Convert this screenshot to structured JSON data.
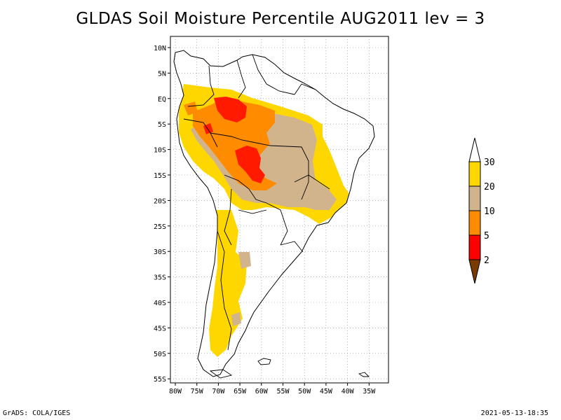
{
  "title": "GLDAS Soil Moisture Percentile AUG2011 lev = 3",
  "footer": {
    "left": "GrADS: COLA/IGES",
    "right": "2021-05-13-18:35"
  },
  "axes": {
    "lat_ticks": [
      "10N",
      "5N",
      "EQ",
      "5S",
      "10S",
      "15S",
      "20S",
      "25S",
      "30S",
      "35S",
      "40S",
      "45S",
      "50S",
      "55S"
    ],
    "lon_ticks": [
      "80W",
      "75W",
      "70W",
      "65W",
      "60W",
      "55W",
      "50W",
      "45W",
      "40W",
      "35W"
    ]
  },
  "legend": {
    "labels": [
      "2",
      "5",
      "10",
      "20",
      "30"
    ],
    "colors": {
      "below_2": "#7a3b00",
      "2_5": "#ff0000",
      "5_10": "#ff8c00",
      "10_20": "#d2b48c",
      "20_30": "#ffd700",
      "above_30": "#ffffff"
    }
  },
  "colors": {
    "red": "#ff1a00",
    "orange": "#ff8c00",
    "tan": "#d2b48c",
    "yellow": "#ffd700",
    "land_outline": "#000000"
  }
}
